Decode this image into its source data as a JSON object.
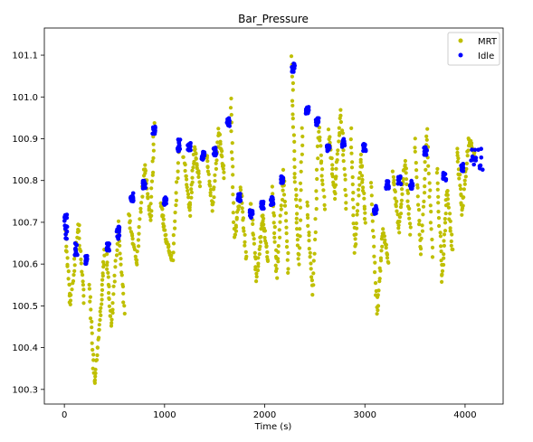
{
  "chart_data": {
    "type": "scatter",
    "title": "Bar_Pressure",
    "xlabel": "Time (s)",
    "ylabel": "",
    "xlim": [
      -200,
      4380
    ],
    "ylim": [
      100.265,
      101.165
    ],
    "xticks": [
      0,
      1000,
      2000,
      3000,
      4000
    ],
    "xtick_labels": [
      "0",
      "1000",
      "2000",
      "3000",
      "4000"
    ],
    "yticks": [
      100.3,
      100.4,
      100.5,
      100.6,
      100.7,
      100.8,
      100.9,
      101.0,
      101.1
    ],
    "ytick_labels": [
      "100.3",
      "100.4",
      "100.5",
      "100.6",
      "100.7",
      "100.8",
      "100.9",
      "101.0",
      "101.1"
    ],
    "grid": false,
    "legend_position": "top-right",
    "series": [
      {
        "name": "MRT",
        "color": "#bfbf00",
        "marker": "circle",
        "segments": [
          [
            [
              10,
              100.68
            ],
            [
              60,
              100.5
            ],
            [
              140,
              100.7
            ],
            [
              200,
              100.5
            ]
          ],
          [
            [
              250,
              100.55
            ],
            [
              300,
              100.31
            ],
            [
              360,
              100.48
            ],
            [
              400,
              100.64
            ]
          ],
          [
            [
              420,
              100.62
            ],
            [
              470,
              100.45
            ],
            [
              540,
              100.7
            ],
            [
              600,
              100.47
            ]
          ],
          [
            [
              640,
              100.72
            ],
            [
              720,
              100.6
            ],
            [
              800,
              100.84
            ],
            [
              860,
              100.7
            ],
            [
              900,
              100.95
            ]
          ],
          [
            [
              960,
              100.75
            ],
            [
              1010,
              100.66
            ],
            [
              1080,
              100.61
            ],
            [
              1150,
              100.9
            ]
          ],
          [
            [
              1190,
              100.86
            ],
            [
              1250,
              100.72
            ],
            [
              1300,
              100.88
            ],
            [
              1360,
              100.78
            ]
          ],
          [
            [
              1420,
              100.86
            ],
            [
              1480,
              100.73
            ],
            [
              1540,
              100.92
            ],
            [
              1600,
              100.8
            ]
          ],
          [
            [
              1660,
              101.0
            ],
            [
              1700,
              100.66
            ],
            [
              1760,
              100.78
            ],
            [
              1820,
              100.6
            ]
          ],
          [
            [
              1860,
              100.75
            ],
            [
              1920,
              100.56
            ],
            [
              1980,
              100.72
            ],
            [
              2040,
              100.6
            ]
          ],
          [
            [
              2080,
              100.78
            ],
            [
              2120,
              100.57
            ],
            [
              2190,
              100.82
            ],
            [
              2240,
              100.56
            ]
          ],
          [
            [
              2270,
              101.1
            ],
            [
              2300,
              100.82
            ],
            [
              2340,
              100.6
            ],
            [
              2380,
              100.95
            ]
          ],
          [
            [
              2420,
              100.75
            ],
            [
              2480,
              100.53
            ],
            [
              2540,
              100.93
            ],
            [
              2600,
              100.72
            ]
          ],
          [
            [
              2640,
              100.92
            ],
            [
              2700,
              100.76
            ],
            [
              2760,
              100.97
            ],
            [
              2820,
              100.72
            ]
          ],
          [
            [
              2860,
              100.92
            ],
            [
              2900,
              100.63
            ],
            [
              2960,
              100.86
            ],
            [
              3010,
              100.69
            ]
          ],
          [
            [
              3060,
              100.8
            ],
            [
              3120,
              100.48
            ],
            [
              3180,
              100.68
            ],
            [
              3240,
              100.6
            ]
          ],
          [
            [
              3280,
              100.82
            ],
            [
              3340,
              100.68
            ],
            [
              3400,
              100.85
            ],
            [
              3460,
              100.66
            ]
          ],
          [
            [
              3500,
              100.9
            ],
            [
              3560,
              100.62
            ],
            [
              3620,
              100.92
            ],
            [
              3680,
              100.6
            ]
          ],
          [
            [
              3720,
              100.83
            ],
            [
              3770,
              100.56
            ],
            [
              3820,
              100.78
            ],
            [
              3880,
              100.62
            ]
          ],
          [
            [
              3920,
              100.88
            ],
            [
              3970,
              100.72
            ],
            [
              4040,
              100.9
            ],
            [
              4100,
              100.86
            ]
          ]
        ]
      },
      {
        "name": "Idle",
        "color": "#0000ff",
        "marker": "circle",
        "clusters": [
          {
            "x_range": [
              0,
              30
            ],
            "y_range": [
              100.66,
              100.72
            ]
          },
          {
            "x_range": [
              100,
              130
            ],
            "y_range": [
              100.62,
              100.65
            ]
          },
          {
            "x_range": [
              200,
              230
            ],
            "y_range": [
              100.6,
              100.62
            ]
          },
          {
            "x_range": [
              420,
              450
            ],
            "y_range": [
              100.63,
              100.65
            ]
          },
          {
            "x_range": [
              520,
              550
            ],
            "y_range": [
              100.66,
              100.69
            ]
          },
          {
            "x_range": [
              660,
              690
            ],
            "y_range": [
              100.75,
              100.77
            ]
          },
          {
            "x_range": [
              780,
              810
            ],
            "y_range": [
              100.78,
              100.8
            ]
          },
          {
            "x_range": [
              880,
              910
            ],
            "y_range": [
              100.91,
              100.93
            ]
          },
          {
            "x_range": [
              990,
              1020
            ],
            "y_range": [
              100.74,
              100.76
            ]
          },
          {
            "x_range": [
              1130,
              1160
            ],
            "y_range": [
              100.87,
              100.9
            ]
          },
          {
            "x_range": [
              1230,
              1260
            ],
            "y_range": [
              100.87,
              100.89
            ]
          },
          {
            "x_range": [
              1370,
              1400
            ],
            "y_range": [
              100.85,
              100.87
            ]
          },
          {
            "x_range": [
              1490,
              1520
            ],
            "y_range": [
              100.86,
              100.88
            ]
          },
          {
            "x_range": [
              1620,
              1650
            ],
            "y_range": [
              100.93,
              100.95
            ]
          },
          {
            "x_range": [
              1730,
              1760
            ],
            "y_range": [
              100.75,
              100.77
            ]
          },
          {
            "x_range": [
              1850,
              1880
            ],
            "y_range": [
              100.71,
              100.73
            ]
          },
          {
            "x_range": [
              1960,
              1990
            ],
            "y_range": [
              100.73,
              100.75
            ]
          },
          {
            "x_range": [
              2060,
              2090
            ],
            "y_range": [
              100.74,
              100.76
            ]
          },
          {
            "x_range": [
              2160,
              2190
            ],
            "y_range": [
              100.79,
              100.81
            ]
          },
          {
            "x_range": [
              2270,
              2300
            ],
            "y_range": [
              101.06,
              101.08
            ]
          },
          {
            "x_range": [
              2410,
              2440
            ],
            "y_range": [
              100.96,
              100.98
            ]
          },
          {
            "x_range": [
              2510,
              2540
            ],
            "y_range": [
              100.93,
              100.95
            ]
          },
          {
            "x_range": [
              2620,
              2650
            ],
            "y_range": [
              100.87,
              100.89
            ]
          },
          {
            "x_range": [
              2770,
              2800
            ],
            "y_range": [
              100.88,
              100.9
            ]
          },
          {
            "x_range": [
              2980,
              3010
            ],
            "y_range": [
              100.87,
              100.89
            ]
          },
          {
            "x_range": [
              3090,
              3120
            ],
            "y_range": [
              100.72,
              100.74
            ]
          },
          {
            "x_range": [
              3210,
              3240
            ],
            "y_range": [
              100.78,
              100.8
            ]
          },
          {
            "x_range": [
              3330,
              3360
            ],
            "y_range": [
              100.79,
              100.81
            ]
          },
          {
            "x_range": [
              3450,
              3480
            ],
            "y_range": [
              100.78,
              100.8
            ]
          },
          {
            "x_range": [
              3590,
              3620
            ],
            "y_range": [
              100.86,
              100.88
            ]
          },
          {
            "x_range": [
              3780,
              3810
            ],
            "y_range": [
              100.8,
              100.82
            ]
          },
          {
            "x_range": [
              3960,
              3990
            ],
            "y_range": [
              100.82,
              100.84
            ]
          },
          {
            "x_range": [
              4060,
              4180
            ],
            "y_range": [
              100.82,
              100.88
            ]
          }
        ]
      }
    ]
  }
}
